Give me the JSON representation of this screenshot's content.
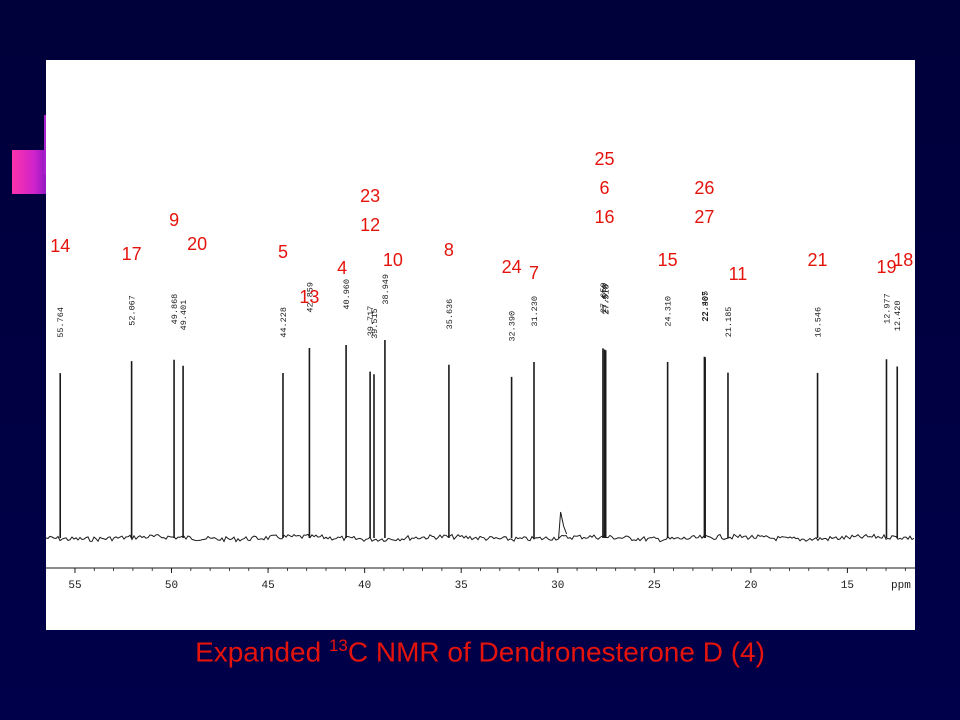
{
  "caption": {
    "prefix": "Expanded ",
    "superscript": "13",
    "suffix": "C NMR of  Dendronesterone D (4)"
  },
  "colors": {
    "background": "#000044",
    "panel": "#ffffff",
    "trace": "#1a1a1a",
    "assignment_text": "#e4140c"
  },
  "chart_data": {
    "type": "line",
    "title": "Expanded 13C NMR of  Dendronesterone D (4)",
    "xlabel": "ppm",
    "x_axis_reversed": true,
    "xlim": [
      56.5,
      11.5
    ],
    "x_ticks": [
      {
        "value": 55,
        "label": "55"
      },
      {
        "value": 50,
        "label": "50"
      },
      {
        "value": 45,
        "label": "45"
      },
      {
        "value": 40,
        "label": "40"
      },
      {
        "value": 35,
        "label": "35"
      },
      {
        "value": 30,
        "label": "30"
      },
      {
        "value": 25,
        "label": "25"
      },
      {
        "value": 20,
        "label": "20"
      },
      {
        "value": 15,
        "label": "15"
      }
    ],
    "unit_label": "ppm",
    "peaks": [
      {
        "ppm": 55.764,
        "label": "55.764"
      },
      {
        "ppm": 52.067,
        "label": "52.067"
      },
      {
        "ppm": 49.868,
        "label": "49.868"
      },
      {
        "ppm": 49.401,
        "label": "49.401"
      },
      {
        "ppm": 44.228,
        "label": "44.228"
      },
      {
        "ppm": 42.859,
        "label": "42.859"
      },
      {
        "ppm": 40.96,
        "label": "40.960"
      },
      {
        "ppm": 39.717,
        "label": "39.717"
      },
      {
        "ppm": 39.515,
        "label": "39.515"
      },
      {
        "ppm": 38.949,
        "label": "38.949"
      },
      {
        "ppm": 35.636,
        "label": "35.636"
      },
      {
        "ppm": 32.39,
        "label": "32.390"
      },
      {
        "ppm": 31.23,
        "label": "31.230"
      },
      {
        "ppm": 27.659,
        "label": "27.659"
      },
      {
        "ppm": 27.578,
        "label": "27.578"
      },
      {
        "ppm": 27.518,
        "label": "27.518"
      },
      {
        "ppm": 24.31,
        "label": "24.310"
      },
      {
        "ppm": 22.405,
        "label": "22.405"
      },
      {
        "ppm": 22.367,
        "label": "22.367"
      },
      {
        "ppm": 21.185,
        "label": "21.185"
      },
      {
        "ppm": 16.546,
        "label": "16.546"
      },
      {
        "ppm": 12.977,
        "label": "12.977"
      },
      {
        "ppm": 12.42,
        "label": "12.420"
      }
    ],
    "assignments": [
      {
        "text": "14",
        "ppm": 55.764
      },
      {
        "text": "17",
        "ppm": 52.067
      },
      {
        "text": "9",
        "ppm": 49.868
      },
      {
        "text": "20",
        "ppm": 49.401
      },
      {
        "text": "5",
        "ppm": 44.228
      },
      {
        "text": "13",
        "ppm": 42.859
      },
      {
        "text": "4",
        "ppm": 40.96
      },
      {
        "text": "23",
        "ppm": 39.717
      },
      {
        "text": "12",
        "ppm": 39.717
      },
      {
        "text": "10",
        "ppm": 38.949
      },
      {
        "text": "8",
        "ppm": 35.636
      },
      {
        "text": "24",
        "ppm": 32.39
      },
      {
        "text": "7",
        "ppm": 31.23
      },
      {
        "text": "25",
        "ppm": 27.578
      },
      {
        "text": "6",
        "ppm": 27.578
      },
      {
        "text": "16",
        "ppm": 27.578
      },
      {
        "text": "15",
        "ppm": 24.31
      },
      {
        "text": "26",
        "ppm": 22.405
      },
      {
        "text": "27",
        "ppm": 22.405
      },
      {
        "text": "11",
        "ppm": 21.185
      },
      {
        "text": "21",
        "ppm": 16.546
      },
      {
        "text": "19",
        "ppm": 12.977
      },
      {
        "text": "18",
        "ppm": 12.42
      }
    ]
  }
}
